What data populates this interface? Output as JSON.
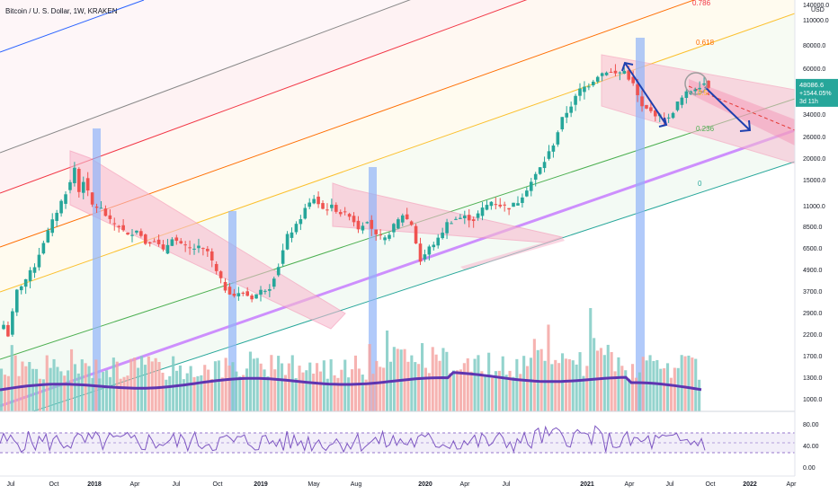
{
  "header": {
    "symbol_title": "Bitcoin / U. S. Dollar, 1W, KRAKEN"
  },
  "price_axis": {
    "currency": "USD",
    "labels": [
      "140000.0",
      "110000.0",
      "80000.0",
      "60000.0",
      "34000.0",
      "26000.0",
      "20000.0",
      "15000.0",
      "11000.0",
      "8500.0",
      "6500.0",
      "4900.0",
      "3700.0",
      "2900.0",
      "2200.0",
      "1700.0",
      "1300.0",
      "1000.0"
    ]
  },
  "rsi_axis": {
    "labels": [
      "80.00",
      "40.00",
      "0.00"
    ]
  },
  "last_price": {
    "price": "48086.6",
    "change": "+1544.05%",
    "countdown": "3d 11h",
    "color": "#26a69a"
  },
  "time_axis": {
    "labels": [
      "Jul",
      "Oct",
      "2018",
      "Apr",
      "Jul",
      "Oct",
      "2019",
      "May",
      "Aug",
      "2020",
      "Apr",
      "Jul",
      "2021",
      "Apr",
      "Jul",
      "Oct",
      "2022",
      "Apr"
    ]
  },
  "fib_levels": [
    {
      "label": "0.786",
      "color": "#f23645"
    },
    {
      "label": "0.618",
      "color": "#ff6d00"
    },
    {
      "label": "0.5",
      "color": "#fbc02d"
    },
    {
      "label": "0.236",
      "color": "#4caf50"
    },
    {
      "label": "0",
      "color": "#26a69a"
    }
  ],
  "chart_data": {
    "type": "candlestick",
    "title": "Bitcoin / U. S. Dollar, 1W, KRAKEN",
    "yscale": "log",
    "ylim": [
      700,
      140000
    ],
    "rsi_ylim": [
      0,
      100
    ],
    "price_path": [
      {
        "t": 0,
        "p": 2500
      },
      {
        "t": 1,
        "p": 2200
      },
      {
        "t": 3,
        "p": 3800
      },
      {
        "t": 5,
        "p": 4400
      },
      {
        "t": 7,
        "p": 5200
      },
      {
        "t": 9,
        "p": 7000
      },
      {
        "t": 11,
        "p": 9000
      },
      {
        "t": 13,
        "p": 11500
      },
      {
        "t": 15,
        "p": 14500
      },
      {
        "t": 16,
        "p": 17500
      },
      {
        "t": 17,
        "p": 13000
      },
      {
        "t": 18,
        "p": 15000
      },
      {
        "t": 20,
        "p": 11000
      },
      {
        "t": 22,
        "p": 10500
      },
      {
        "t": 24,
        "p": 9000
      },
      {
        "t": 26,
        "p": 8500
      },
      {
        "t": 28,
        "p": 7500
      },
      {
        "t": 30,
        "p": 8200
      },
      {
        "t": 32,
        "p": 6900
      },
      {
        "t": 34,
        "p": 7200
      },
      {
        "t": 36,
        "p": 6200
      },
      {
        "t": 38,
        "p": 7400
      },
      {
        "t": 40,
        "p": 6700
      },
      {
        "t": 42,
        "p": 6400
      },
      {
        "t": 44,
        "p": 6500
      },
      {
        "t": 46,
        "p": 6200
      },
      {
        "t": 48,
        "p": 4800
      },
      {
        "t": 50,
        "p": 3900
      },
      {
        "t": 52,
        "p": 3600
      },
      {
        "t": 54,
        "p": 3700
      },
      {
        "t": 56,
        "p": 3500
      },
      {
        "t": 58,
        "p": 3800
      },
      {
        "t": 60,
        "p": 4000
      },
      {
        "t": 62,
        "p": 5200
      },
      {
        "t": 64,
        "p": 7500
      },
      {
        "t": 66,
        "p": 8500
      },
      {
        "t": 68,
        "p": 10500
      },
      {
        "t": 70,
        "p": 12000
      },
      {
        "t": 72,
        "p": 10500
      },
      {
        "t": 74,
        "p": 10800
      },
      {
        "t": 76,
        "p": 10000
      },
      {
        "t": 78,
        "p": 9800
      },
      {
        "t": 80,
        "p": 8300
      },
      {
        "t": 82,
        "p": 9200
      },
      {
        "t": 84,
        "p": 7500
      },
      {
        "t": 86,
        "p": 7200
      },
      {
        "t": 88,
        "p": 8500
      },
      {
        "t": 90,
        "p": 9800
      },
      {
        "t": 92,
        "p": 8700
      },
      {
        "t": 94,
        "p": 5500
      },
      {
        "t": 96,
        "p": 6500
      },
      {
        "t": 98,
        "p": 7200
      },
      {
        "t": 100,
        "p": 8800
      },
      {
        "t": 102,
        "p": 9300
      },
      {
        "t": 104,
        "p": 9500
      },
      {
        "t": 106,
        "p": 9200
      },
      {
        "t": 108,
        "p": 10500
      },
      {
        "t": 110,
        "p": 11500
      },
      {
        "t": 112,
        "p": 11000
      },
      {
        "t": 114,
        "p": 10700
      },
      {
        "t": 116,
        "p": 11500
      },
      {
        "t": 118,
        "p": 13500
      },
      {
        "t": 120,
        "p": 16000
      },
      {
        "t": 122,
        "p": 19000
      },
      {
        "t": 124,
        "p": 23500
      },
      {
        "t": 126,
        "p": 32000
      },
      {
        "t": 128,
        "p": 38000
      },
      {
        "t": 130,
        "p": 46000
      },
      {
        "t": 132,
        "p": 49000
      },
      {
        "t": 134,
        "p": 55000
      },
      {
        "t": 136,
        "p": 58000
      },
      {
        "t": 138,
        "p": 56000
      },
      {
        "t": 140,
        "p": 58000
      },
      {
        "t": 142,
        "p": 49000
      },
      {
        "t": 144,
        "p": 37000
      },
      {
        "t": 146,
        "p": 35000
      },
      {
        "t": 148,
        "p": 33000
      },
      {
        "t": 150,
        "p": 32000
      },
      {
        "t": 152,
        "p": 39000
      },
      {
        "t": 154,
        "p": 44000
      },
      {
        "t": 156,
        "p": 47000
      },
      {
        "t": 158,
        "p": 50000
      },
      {
        "t": 159,
        "p": 48086
      }
    ],
    "volume_ma_level": 1300,
    "last_price": 48086.6
  }
}
